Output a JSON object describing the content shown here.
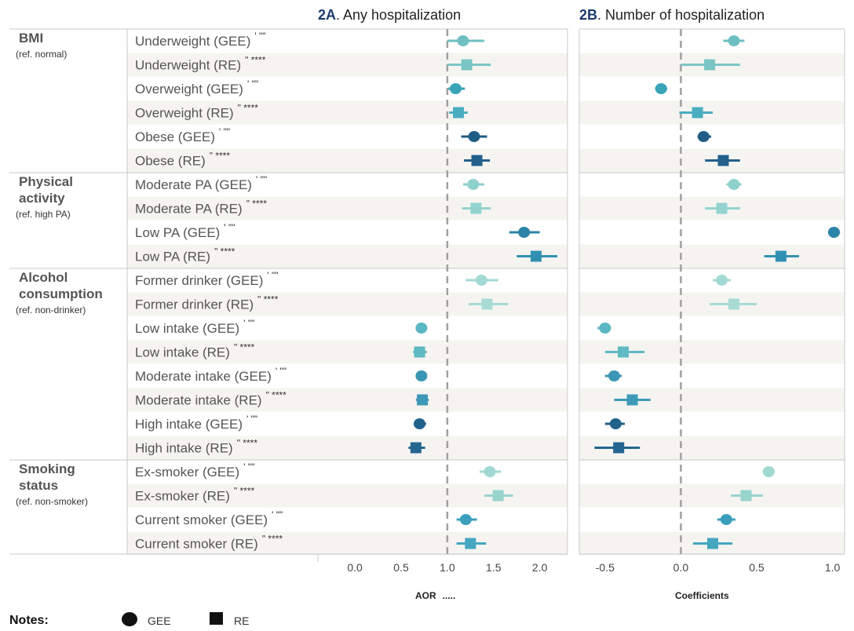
{
  "chart_data": [
    {
      "type": "forest",
      "panel_id": "2A",
      "title": "Any hospitalization",
      "xlabel": "AOR",
      "xlim": [
        -0.4,
        2.3
      ],
      "ticks": [
        "0.0",
        "0.5",
        "1.0",
        "1.5",
        "2.0"
      ],
      "tick_values": [
        0.0,
        0.5,
        1.0,
        1.5,
        2.0
      ],
      "reference_line": 1.0,
      "points": [
        {
          "est": 1.17,
          "lo": 1.0,
          "hi": 1.4
        },
        {
          "est": 1.21,
          "lo": 1.0,
          "hi": 1.47
        },
        {
          "est": 1.09,
          "lo": 1.01,
          "hi": 1.19
        },
        {
          "est": 1.12,
          "lo": 1.02,
          "hi": 1.22
        },
        {
          "est": 1.29,
          "lo": 1.15,
          "hi": 1.43
        },
        {
          "est": 1.32,
          "lo": 1.18,
          "hi": 1.46
        },
        {
          "est": 1.28,
          "lo": 1.17,
          "hi": 1.4
        },
        {
          "est": 1.31,
          "lo": 1.16,
          "hi": 1.47
        },
        {
          "est": 1.83,
          "lo": 1.67,
          "hi": 2.0
        },
        {
          "est": 1.96,
          "lo": 1.75,
          "hi": 2.19
        },
        {
          "est": 1.37,
          "lo": 1.2,
          "hi": 1.55
        },
        {
          "est": 1.43,
          "lo": 1.23,
          "hi": 1.66
        },
        {
          "est": 0.72,
          "lo": 0.66,
          "hi": 0.78
        },
        {
          "est": 0.7,
          "lo": 0.63,
          "hi": 0.78
        },
        {
          "est": 0.72,
          "lo": 0.67,
          "hi": 0.78
        },
        {
          "est": 0.73,
          "lo": 0.66,
          "hi": 0.8
        },
        {
          "est": 0.7,
          "lo": 0.64,
          "hi": 0.77
        },
        {
          "est": 0.66,
          "lo": 0.58,
          "hi": 0.76
        },
        {
          "est": 1.46,
          "lo": 1.35,
          "hi": 1.58
        },
        {
          "est": 1.55,
          "lo": 1.4,
          "hi": 1.71
        },
        {
          "est": 1.2,
          "lo": 1.1,
          "hi": 1.32
        },
        {
          "est": 1.25,
          "lo": 1.1,
          "hi": 1.42
        }
      ]
    },
    {
      "type": "forest",
      "panel_id": "2B",
      "title": "Number of hospitalization",
      "xlabel": "Coefficients",
      "xlim": [
        -0.67,
        1.08
      ],
      "ticks": [
        "-0.5",
        "0.0",
        "0.5",
        "1.0"
      ],
      "tick_values": [
        -0.5,
        0.0,
        0.5,
        1.0
      ],
      "reference_line": 0.0,
      "points": [
        {
          "est": 0.35,
          "lo": 0.28,
          "hi": 0.42
        },
        {
          "est": 0.19,
          "lo": 0.0,
          "hi": 0.39
        },
        {
          "est": -0.13,
          "lo": -0.17,
          "hi": -0.09
        },
        {
          "est": 0.11,
          "lo": -0.01,
          "hi": 0.21
        },
        {
          "est": 0.15,
          "lo": 0.11,
          "hi": 0.2
        },
        {
          "est": 0.28,
          "lo": 0.16,
          "hi": 0.39
        },
        {
          "est": 0.35,
          "lo": 0.3,
          "hi": 0.4
        },
        {
          "est": 0.27,
          "lo": 0.16,
          "hi": 0.39
        },
        {
          "est": 1.01,
          "lo": 0.98,
          "hi": 1.05
        },
        {
          "est": 0.66,
          "lo": 0.55,
          "hi": 0.78
        },
        {
          "est": 0.27,
          "lo": 0.21,
          "hi": 0.33
        },
        {
          "est": 0.35,
          "lo": 0.19,
          "hi": 0.5
        },
        {
          "est": -0.5,
          "lo": -0.55,
          "hi": -0.46
        },
        {
          "est": -0.38,
          "lo": -0.5,
          "hi": -0.24
        },
        {
          "est": -0.44,
          "lo": -0.5,
          "hi": -0.39
        },
        {
          "est": -0.32,
          "lo": -0.44,
          "hi": -0.2
        },
        {
          "est": -0.43,
          "lo": -0.5,
          "hi": -0.37
        },
        {
          "est": -0.41,
          "lo": -0.57,
          "hi": -0.27
        },
        {
          "est": 0.58,
          "lo": 0.54,
          "hi": 0.62
        },
        {
          "est": 0.43,
          "lo": 0.33,
          "hi": 0.54
        },
        {
          "est": 0.3,
          "lo": 0.24,
          "hi": 0.36
        },
        {
          "est": 0.21,
          "lo": 0.08,
          "hi": 0.34
        }
      ]
    }
  ],
  "rows": [
    {
      "label": "Underweight (GEE)",
      "mark": "' \"\"",
      "shape": "circle",
      "color": "#6fbfc2"
    },
    {
      "label": "Underweight (RE)",
      "mark": "\" ****",
      "shape": "square",
      "color": "#7ac6c5"
    },
    {
      "label": "Overweight (GEE)",
      "mark": "' \"\"",
      "shape": "circle",
      "color": "#3aa4b7"
    },
    {
      "label": "Overweight (RE)",
      "mark": "\" ****",
      "shape": "square",
      "color": "#4aaec0"
    },
    {
      "label": "Obese (GEE)",
      "mark": "' \"\"",
      "shape": "circle",
      "color": "#1f5d86"
    },
    {
      "label": "Obese (RE)",
      "mark": "\" ****",
      "shape": "square",
      "color": "#23608c"
    },
    {
      "label": "Moderate PA (GEE)",
      "mark": "' \"\"",
      "shape": "circle",
      "color": "#8ed0cc"
    },
    {
      "label": "Moderate PA (RE)",
      "mark": "\" ****",
      "shape": "square",
      "color": "#93d3cf"
    },
    {
      "label": "Low PA (GEE)",
      "mark": "' \"\"",
      "shape": "circle",
      "color": "#2c83a8"
    },
    {
      "label": "Low PA (RE)",
      "mark": "\" ****",
      "shape": "square",
      "color": "#3291b3"
    },
    {
      "label": "Former drinker (GEE)",
      "mark": "' \"\"",
      "shape": "circle",
      "color": "#a3d9d4"
    },
    {
      "label": "Former drinker (RE)",
      "mark": "\" ****",
      "shape": "square",
      "color": "#a8dbd6"
    },
    {
      "label": "Low intake (GEE)",
      "mark": "' \"\"",
      "shape": "circle",
      "color": "#5bb7c2"
    },
    {
      "label": "Low intake (RE)",
      "mark": "\" ****",
      "shape": "square",
      "color": "#5fbac4"
    },
    {
      "label": "Moderate intake (GEE)",
      "mark": "' \"\"",
      "shape": "circle",
      "color": "#3b95b5"
    },
    {
      "label": "Moderate intake (RE)",
      "mark": "\" ****",
      "shape": "square",
      "color": "#3e99b8"
    },
    {
      "label": "High intake (GEE)",
      "mark": "' \"\"",
      "shape": "circle",
      "color": "#21628c"
    },
    {
      "label": "High intake (RE)",
      "mark": "\" ****",
      "shape": "square",
      "color": "#246690"
    },
    {
      "label": "Ex-smoker (GEE)",
      "mark": "' \"\"",
      "shape": "circle",
      "color": "#a0d8d2"
    },
    {
      "label": "Ex-smoker (RE)",
      "mark": "\" ****",
      "shape": "square",
      "color": "#98d3ce"
    },
    {
      "label": "Current smoker (GEE)",
      "mark": "' \"\"",
      "shape": "circle",
      "color": "#3b9fbc"
    },
    {
      "label": "Current smoker (RE)",
      "mark": "\" ****",
      "shape": "square",
      "color": "#44a6c0"
    }
  ],
  "groups": [
    {
      "title_lines": [
        "BMI"
      ],
      "ref": "(ref. normal)",
      "row_start": 0,
      "row_end": 5
    },
    {
      "title_lines": [
        "Physical",
        "activity"
      ],
      "ref": "(ref. high PA)",
      "row_start": 6,
      "row_end": 9
    },
    {
      "title_lines": [
        "Alcohol",
        "consumption"
      ],
      "ref": "(ref. non-drinker)",
      "row_start": 10,
      "row_end": 17
    },
    {
      "title_lines": [
        "Smoking",
        "status"
      ],
      "ref": "(ref. non-smoker)",
      "row_start": 18,
      "row_end": 21
    }
  ],
  "axis_mark": ".....",
  "notes": {
    "label": "Notes:",
    "legend": [
      {
        "shape": "circle",
        "label": "GEE"
      },
      {
        "shape": "square",
        "label": "RE"
      }
    ]
  },
  "colors": {
    "stripe": "#f5f4f1",
    "panel_border": "#c8c8c8",
    "ref_line": "#a0a0a0",
    "legend_mark": "#111111"
  }
}
